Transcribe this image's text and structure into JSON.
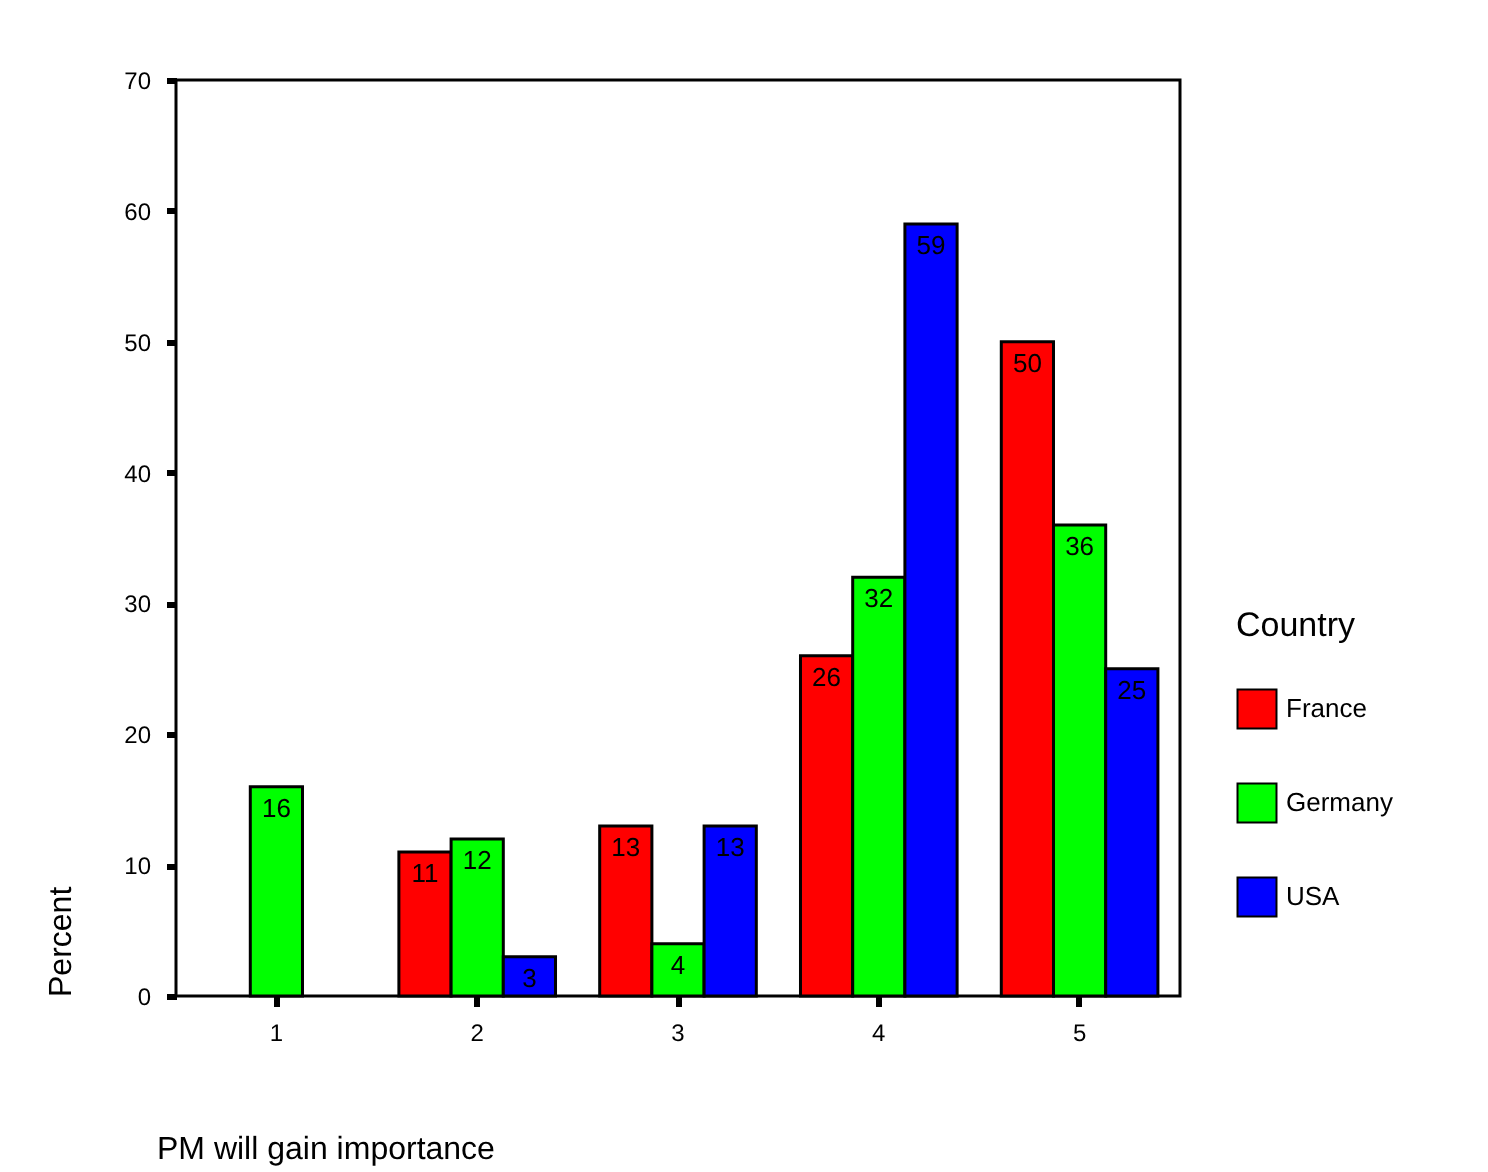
{
  "chart_data": {
    "type": "bar",
    "xlabel": "PM will gain importance",
    "ylabel": "Percent",
    "legend_title": "Country",
    "categories": [
      "1",
      "2",
      "3",
      "4",
      "5"
    ],
    "series": [
      {
        "name": "France",
        "color": "#ff0000",
        "values": [
          null,
          11,
          13,
          26,
          50
        ]
      },
      {
        "name": "Germany",
        "color": "#00ff00",
        "values": [
          16,
          12,
          4,
          32,
          36
        ]
      },
      {
        "name": "USA",
        "color": "#0000ff",
        "values": [
          null,
          3,
          13,
          59,
          25
        ]
      }
    ],
    "data_labels": true,
    "ylim": [
      0,
      70
    ],
    "yticks": [
      0,
      10,
      20,
      30,
      40,
      50,
      60,
      70
    ],
    "grid": false,
    "legend": "right"
  }
}
